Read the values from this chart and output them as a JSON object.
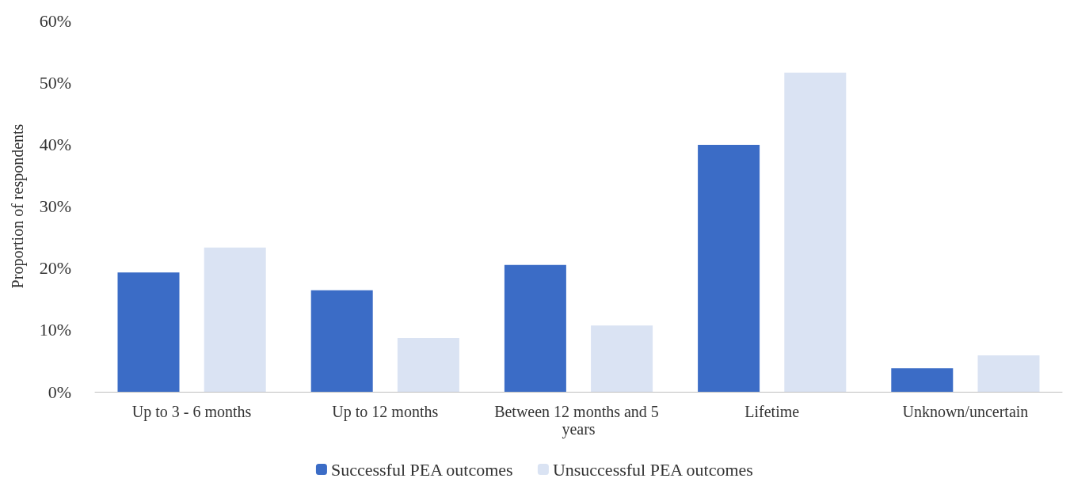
{
  "chart_data": {
    "type": "bar",
    "ylabel": "Proportion of respondents",
    "categories": [
      "Up to 3 - 6 months",
      "Up to 12 months",
      "Between 12 months and 5 years",
      "Lifetime",
      "Unknown/uncertain"
    ],
    "series": [
      {
        "name": "Successful PEA outcomes",
        "color": "#3b6cc6",
        "values": [
          19.3,
          16.4,
          20.5,
          39.9,
          3.8
        ]
      },
      {
        "name": "Unsuccessful PEA outcomes",
        "color": "#dae3f3",
        "values": [
          23.3,
          8.7,
          10.7,
          51.6,
          5.9
        ]
      }
    ],
    "ylim": [
      0,
      60
    ],
    "yticks": [
      {
        "value": 0,
        "label": "0%"
      },
      {
        "value": 10,
        "label": "10%"
      },
      {
        "value": 20,
        "label": "20%"
      },
      {
        "value": 30,
        "label": "30%"
      },
      {
        "value": 40,
        "label": "40%"
      },
      {
        "value": 50,
        "label": "50%"
      },
      {
        "value": 60,
        "label": "60%"
      }
    ],
    "grid": false,
    "legend": "bottom"
  }
}
